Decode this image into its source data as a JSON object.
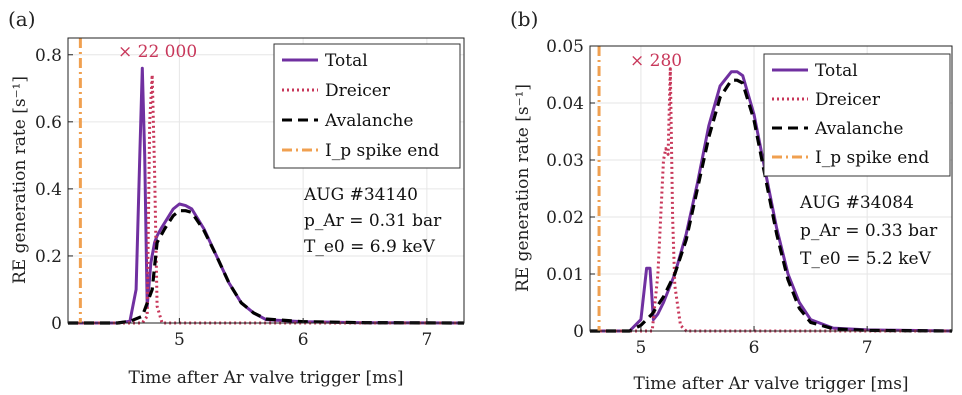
{
  "chart_data": [
    {
      "type": "line",
      "panel_label": "(a)",
      "xlabel": "Time after Ar valve trigger [ms]",
      "ylabel": "RE generation rate [s⁻¹]",
      "xlim": [
        4.1,
        7.3
      ],
      "ylim": [
        0,
        0.85
      ],
      "xticks": [
        "5",
        "6",
        "7"
      ],
      "xtick_values": [
        5,
        6,
        7
      ],
      "yticks": [
        "0",
        "0.2",
        "0.4",
        "0.6",
        "0.8"
      ],
      "ytick_values": [
        0,
        0.2,
        0.4,
        0.6,
        0.8
      ],
      "grid": true,
      "legend_position": "top-right",
      "multiplier_text": "× 22 000",
      "annotations": [
        "AUG #34140",
        "p_Ar = 0.31 bar",
        "T_e0 = 6.9 keV"
      ],
      "series": [
        {
          "name": "Total",
          "color": "#7030a0",
          "style": "solid",
          "x": [
            4.1,
            4.5,
            4.6,
            4.65,
            4.68,
            4.7,
            4.72,
            4.74,
            4.77,
            4.8,
            4.82,
            4.85,
            4.9,
            4.95,
            5.0,
            5.05,
            5.1,
            5.2,
            5.3,
            5.4,
            5.5,
            5.6,
            5.7,
            6.0,
            6.5,
            7.3
          ],
          "y": [
            0,
            0,
            0.005,
            0.1,
            0.5,
            0.76,
            0.5,
            0.05,
            0.18,
            0.24,
            0.26,
            0.28,
            0.31,
            0.34,
            0.355,
            0.35,
            0.34,
            0.28,
            0.2,
            0.12,
            0.06,
            0.03,
            0.01,
            0.004,
            0.001,
            0
          ]
        },
        {
          "name": "Dreicer",
          "color": "#c8375a",
          "style": "dotted",
          "x": [
            4.1,
            4.7,
            4.74,
            4.76,
            4.78,
            4.8,
            4.82,
            4.86,
            7.3
          ],
          "y": [
            0,
            0,
            0.02,
            0.6,
            0.74,
            0.45,
            0.05,
            0,
            0
          ]
        },
        {
          "name": "Avalanche",
          "color": "#000000",
          "style": "dashed",
          "x": [
            4.1,
            4.5,
            4.6,
            4.7,
            4.78,
            4.82,
            4.88,
            4.95,
            5.0,
            5.05,
            5.1,
            5.2,
            5.3,
            5.4,
            5.5,
            5.6,
            5.7,
            6.0,
            6.5,
            7.3
          ],
          "y": [
            0,
            0,
            0.005,
            0.02,
            0.1,
            0.24,
            0.28,
            0.32,
            0.335,
            0.335,
            0.33,
            0.275,
            0.2,
            0.12,
            0.06,
            0.03,
            0.012,
            0.004,
            0.001,
            0
          ]
        },
        {
          "name": "I_p spike end",
          "color": "#f0a050",
          "style": "dashdot",
          "vline": 4.2
        }
      ]
    },
    {
      "type": "line",
      "panel_label": "(b)",
      "xlabel": "Time after Ar valve trigger [ms]",
      "ylabel": "RE generation rate [s⁻¹]",
      "xlim": [
        4.55,
        7.75
      ],
      "ylim": [
        0,
        0.05
      ],
      "xticks": [
        "5",
        "6",
        "7"
      ],
      "xtick_values": [
        5,
        6,
        7
      ],
      "yticks": [
        "0",
        "0.01",
        "0.02",
        "0.03",
        "0.04",
        "0.05"
      ],
      "ytick_values": [
        0,
        0.01,
        0.02,
        0.03,
        0.04,
        0.05
      ],
      "grid": true,
      "legend_position": "top-right",
      "multiplier_text": "× 280",
      "annotations": [
        "AUG #34084",
        "p_Ar = 0.33 bar",
        "T_e0 = 5.2 keV"
      ],
      "series": [
        {
          "name": "Total",
          "color": "#7030a0",
          "style": "solid",
          "x": [
            4.55,
            4.9,
            5.0,
            5.05,
            5.08,
            5.11,
            5.15,
            5.2,
            5.3,
            5.4,
            5.5,
            5.6,
            5.7,
            5.8,
            5.85,
            5.9,
            6.0,
            6.1,
            6.2,
            6.3,
            6.4,
            6.5,
            6.7,
            7.0,
            7.75
          ],
          "y": [
            0,
            0,
            0.002,
            0.011,
            0.011,
            0.002,
            0.003,
            0.005,
            0.01,
            0.017,
            0.026,
            0.036,
            0.043,
            0.0455,
            0.0455,
            0.0448,
            0.038,
            0.028,
            0.018,
            0.01,
            0.005,
            0.002,
            0.0005,
            0.0002,
            0
          ]
        },
        {
          "name": "Dreicer",
          "color": "#c8375a",
          "style": "dotted",
          "x": [
            4.55,
            5.1,
            5.15,
            5.2,
            5.22,
            5.24,
            5.26,
            5.28,
            5.3,
            5.35,
            5.4,
            7.75
          ],
          "y": [
            0,
            0,
            0.01,
            0.03,
            0.032,
            0.031,
            0.046,
            0.02,
            0.008,
            0.001,
            0,
            0
          ]
        },
        {
          "name": "Avalanche",
          "color": "#000000",
          "style": "dashed",
          "x": [
            4.55,
            4.9,
            5.0,
            5.1,
            5.2,
            5.3,
            5.4,
            5.5,
            5.6,
            5.7,
            5.8,
            5.85,
            5.9,
            6.0,
            6.1,
            6.2,
            6.3,
            6.4,
            6.5,
            6.7,
            7.0,
            7.75
          ],
          "y": [
            0,
            0,
            0.001,
            0.003,
            0.006,
            0.01,
            0.016,
            0.025,
            0.034,
            0.041,
            0.044,
            0.044,
            0.0435,
            0.037,
            0.027,
            0.017,
            0.009,
            0.004,
            0.0015,
            0.0004,
            0.0001,
            0
          ]
        },
        {
          "name": "I_p spike end",
          "color": "#f0a050",
          "style": "dashdot",
          "vline": 4.63
        }
      ]
    }
  ]
}
